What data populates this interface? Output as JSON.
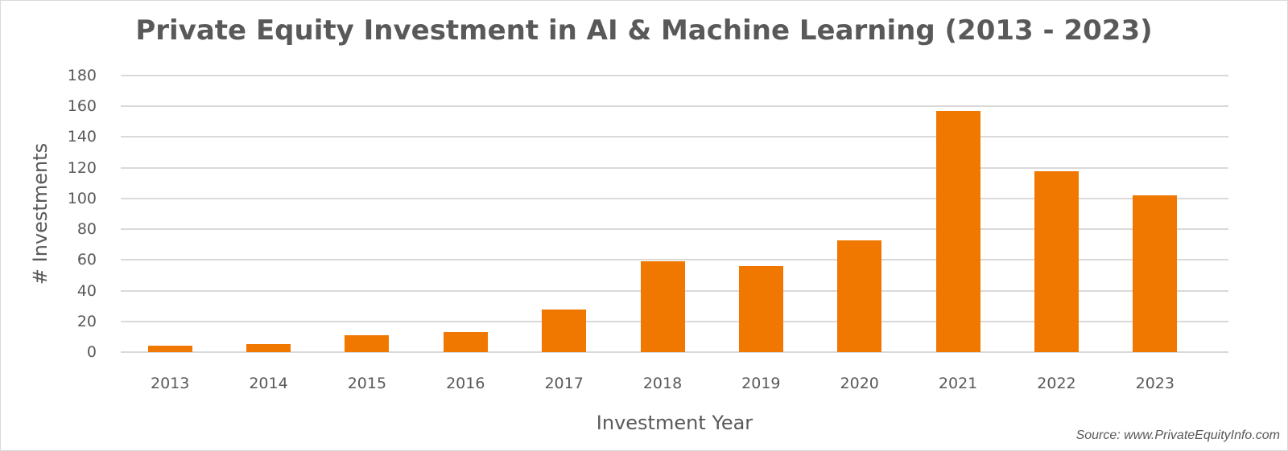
{
  "chart_data": {
    "type": "bar",
    "title": "Private Equity Investment in AI & Machine Learning (2013 - 2023)",
    "xlabel": "Investment Year",
    "ylabel": "# Investments",
    "categories": [
      "2013",
      "2014",
      "2015",
      "2016",
      "2017",
      "2018",
      "2019",
      "2020",
      "2021",
      "2022",
      "2023"
    ],
    "values": [
      4,
      5,
      11,
      13,
      28,
      59,
      56,
      73,
      157,
      118,
      102
    ],
    "ylim": [
      0,
      180
    ],
    "yticks": [
      "0",
      "20",
      "40",
      "60",
      "80",
      "100",
      "120",
      "140",
      "160",
      "180"
    ],
    "grid": true,
    "legend": "none",
    "bar_color": "#f07800",
    "source": "Source: www.PrivateEquityInfo.com"
  }
}
